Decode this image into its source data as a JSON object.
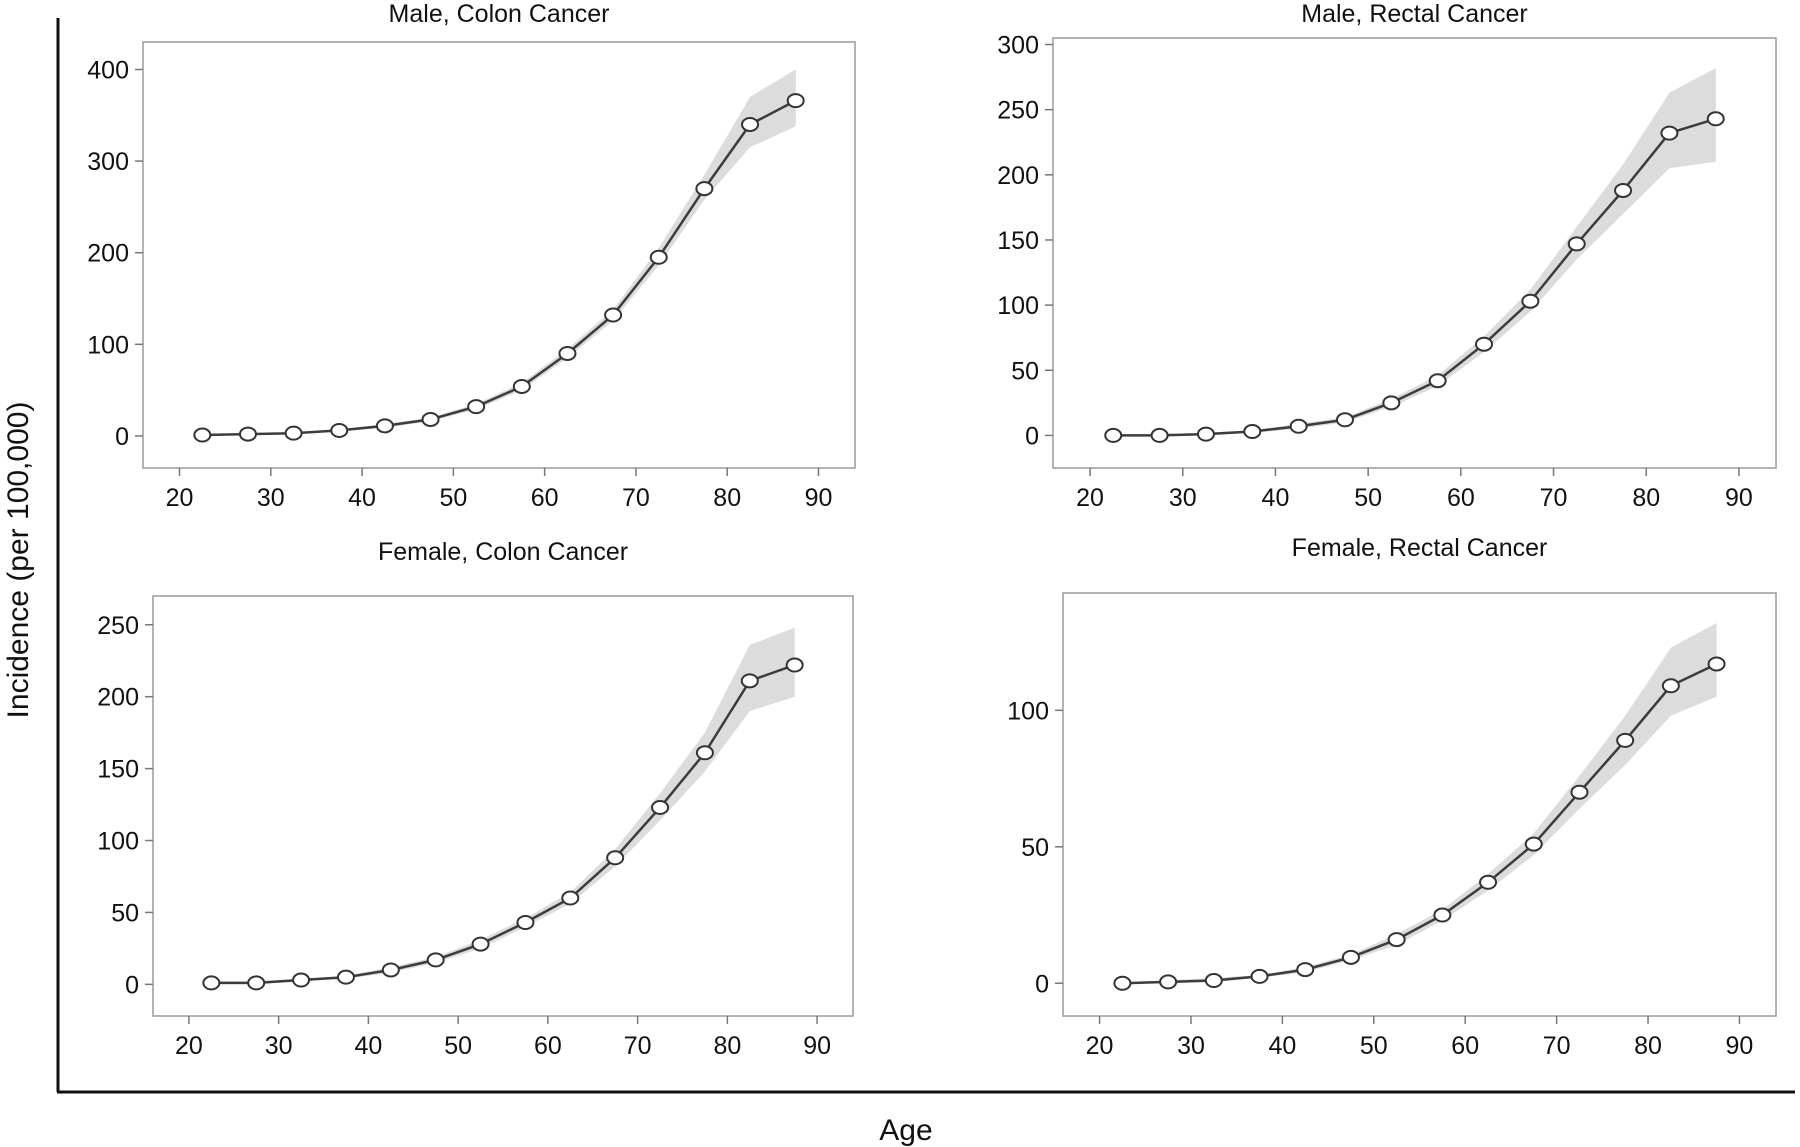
{
  "figure": {
    "xlabel": "Age",
    "ylabel": "Incidence (per 100,000)"
  },
  "chart_data": [
    {
      "type": "line",
      "title": "Male, Colon Cancer",
      "xlabel": "",
      "ylabel": "",
      "xlim": [
        16,
        94
      ],
      "ylim": [
        -35,
        430
      ],
      "xticks": [
        20,
        30,
        40,
        50,
        60,
        70,
        80,
        90
      ],
      "yticks": [
        0,
        100,
        200,
        300,
        400
      ],
      "grid": false,
      "series": [
        {
          "x": [
            22.5,
            27.5,
            32.5,
            37.5,
            42.5,
            47.5,
            52.5,
            57.5,
            62.5,
            67.5,
            72.5,
            77.5,
            82.5,
            87.5
          ],
          "y": [
            1,
            2,
            3,
            6,
            11,
            18,
            32,
            54,
            90,
            132,
            195,
            270,
            340,
            366
          ],
          "ci_low": [
            0,
            1,
            2,
            5,
            9,
            16,
            29,
            50,
            85,
            126,
            186,
            258,
            315,
            338
          ],
          "ci_high": [
            2,
            3,
            4,
            7,
            13,
            20,
            35,
            58,
            95,
            138,
            205,
            285,
            370,
            400
          ]
        }
      ]
    },
    {
      "type": "line",
      "title": "Male, Rectal Cancer",
      "xlabel": "",
      "ylabel": "",
      "xlim": [
        16,
        94
      ],
      "ylim": [
        -25,
        305
      ],
      "xticks": [
        20,
        30,
        40,
        50,
        60,
        70,
        80,
        90
      ],
      "yticks": [
        0,
        50,
        100,
        150,
        200,
        250,
        300
      ],
      "grid": false,
      "series": [
        {
          "x": [
            22.5,
            27.5,
            32.5,
            37.5,
            42.5,
            47.5,
            52.5,
            57.5,
            62.5,
            67.5,
            72.5,
            77.5,
            82.5,
            87.5
          ],
          "y": [
            0,
            0,
            1,
            3,
            7,
            12,
            25,
            42,
            70,
            103,
            147,
            188,
            232,
            243
          ],
          "ci_low": [
            0,
            0,
            0,
            2,
            5,
            10,
            22,
            38,
            64,
            95,
            135,
            170,
            205,
            210
          ],
          "ci_high": [
            1,
            1,
            2,
            4,
            9,
            14,
            28,
            46,
            76,
            112,
            160,
            208,
            263,
            282
          ]
        }
      ]
    },
    {
      "type": "line",
      "title": "Female, Colon Cancer",
      "xlabel": "",
      "ylabel": "",
      "xlim": [
        16,
        94
      ],
      "ylim": [
        -22,
        270
      ],
      "xticks": [
        20,
        30,
        40,
        50,
        60,
        70,
        80,
        90
      ],
      "yticks": [
        0,
        50,
        100,
        150,
        200,
        250
      ],
      "grid": false,
      "series": [
        {
          "x": [
            22.5,
            27.5,
            32.5,
            37.5,
            42.5,
            47.5,
            52.5,
            57.5,
            62.5,
            67.5,
            72.5,
            77.5,
            82.5,
            87.5
          ],
          "y": [
            1,
            1,
            3,
            5,
            10,
            17,
            28,
            43,
            60,
            88,
            123,
            161,
            211,
            222
          ],
          "ci_low": [
            0,
            0,
            2,
            4,
            8,
            15,
            25,
            40,
            56,
            82,
            114,
            148,
            190,
            200
          ],
          "ci_high": [
            2,
            2,
            4,
            6,
            12,
            19,
            31,
            46,
            64,
            94,
            133,
            175,
            236,
            248
          ]
        }
      ]
    },
    {
      "type": "line",
      "title": "Female, Rectal Cancer",
      "xlabel": "",
      "ylabel": "",
      "xlim": [
        16,
        94
      ],
      "ylim": [
        -12,
        143
      ],
      "xticks": [
        20,
        30,
        40,
        50,
        60,
        70,
        80,
        90
      ],
      "yticks": [
        0,
        50,
        100
      ],
      "grid": false,
      "series": [
        {
          "x": [
            22.5,
            27.5,
            32.5,
            37.5,
            42.5,
            47.5,
            52.5,
            57.5,
            62.5,
            67.5,
            72.5,
            77.5,
            82.5,
            87.5
          ],
          "y": [
            0,
            0.5,
            1,
            2.5,
            5,
            9.5,
            16,
            25,
            37,
            51,
            70,
            89,
            109,
            117
          ],
          "ci_low": [
            0,
            0,
            0.5,
            2,
            4,
            8.5,
            14,
            23,
            34,
            47,
            64,
            80,
            98,
            105
          ],
          "ci_high": [
            0.5,
            1,
            2,
            3,
            6,
            10.5,
            18,
            27,
            40,
            55,
            76,
            98,
            123,
            132
          ]
        }
      ]
    }
  ]
}
